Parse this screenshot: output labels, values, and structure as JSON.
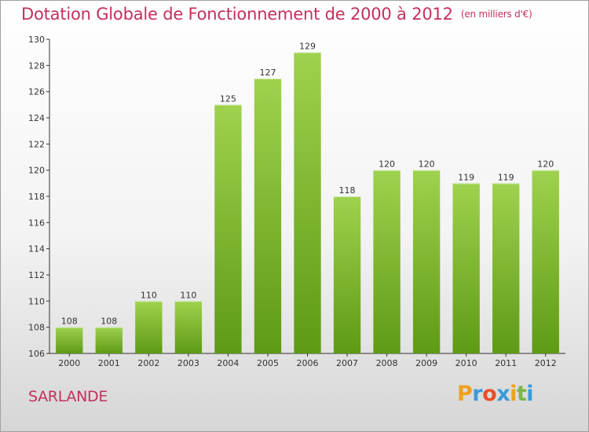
{
  "title": "Dotation Globale de Fonctionnement de 2000 à 2012",
  "unit": "(en milliers d'€)",
  "commune": "SARLANDE",
  "logo": {
    "letters": [
      "P",
      "r",
      "o",
      "x",
      "i",
      "t",
      "i"
    ],
    "colors": [
      "#f0a020",
      "#3a9ad9",
      "#e8502a",
      "#3a9ad9",
      "#f0a020",
      "#7ab648",
      "#3a9ad9"
    ]
  },
  "colors": {
    "title": "#c4305b",
    "bar_light": "#9fd24e",
    "bar_dark": "#5e9a14"
  },
  "chart_data": {
    "type": "bar",
    "categories": [
      "2000",
      "2001",
      "2002",
      "2003",
      "2004",
      "2005",
      "2006",
      "2007",
      "2008",
      "2009",
      "2010",
      "2011",
      "2012"
    ],
    "values": [
      108,
      108,
      110,
      110,
      125,
      127,
      129,
      118,
      120,
      120,
      119,
      119,
      120
    ],
    "labels": [
      "108",
      "108",
      "110",
      "110",
      "125",
      "127",
      "129",
      "118",
      "120",
      "120",
      "119",
      "119",
      "120"
    ],
    "yticks": [
      "106",
      "108",
      "110",
      "112",
      "114",
      "116",
      "118",
      "120",
      "122",
      "124",
      "126",
      "128",
      "130"
    ],
    "ylim": [
      106,
      130
    ],
    "grid": false,
    "title": "Dotation Globale de Fonctionnement de 2000 à 2012",
    "xlabel": "",
    "ylabel": ""
  }
}
